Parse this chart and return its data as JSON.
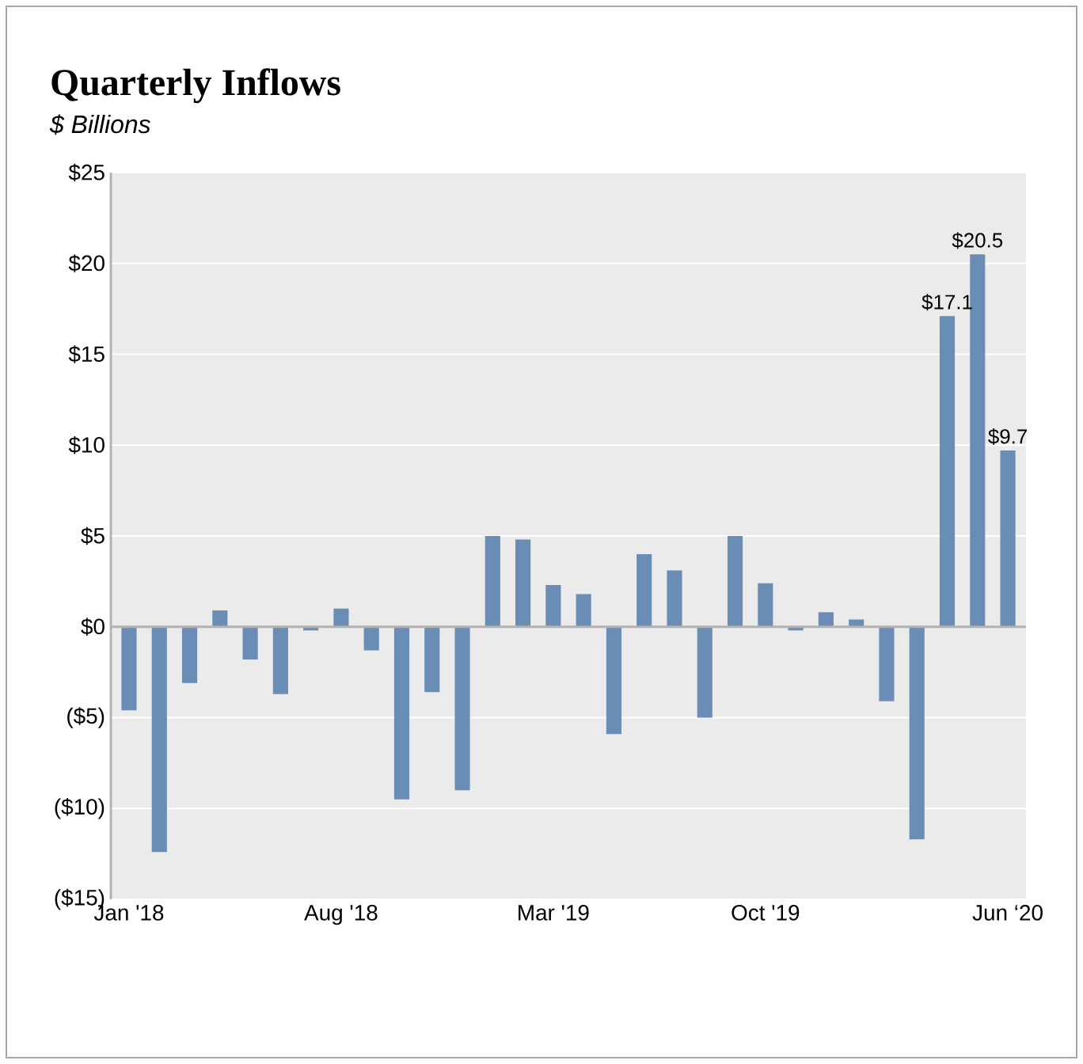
{
  "chart_data": {
    "type": "bar",
    "title": "Quarterly Inflows",
    "subtitle": "$ Billions",
    "categories": [
      "Jan '18",
      null,
      null,
      null,
      null,
      null,
      null,
      "Aug '18",
      null,
      null,
      null,
      null,
      null,
      null,
      "Mar '19",
      null,
      null,
      null,
      null,
      null,
      null,
      "Oct '19",
      null,
      null,
      null,
      null,
      null,
      null,
      null,
      "Jun ‘20"
    ],
    "values": [
      -4.6,
      -12.4,
      -3.1,
      0.9,
      -1.8,
      -3.7,
      -0.2,
      1.0,
      -1.3,
      -9.5,
      -3.6,
      -9.0,
      5.0,
      4.8,
      2.3,
      1.8,
      -5.9,
      4.0,
      3.1,
      -5.0,
      5.0,
      2.4,
      -0.2,
      0.8,
      0.4,
      -4.1,
      -11.7,
      17.1,
      20.5,
      9.7
    ],
    "value_labels": [
      null,
      null,
      null,
      null,
      null,
      null,
      null,
      null,
      null,
      null,
      null,
      null,
      null,
      null,
      null,
      null,
      null,
      null,
      null,
      null,
      null,
      null,
      null,
      null,
      null,
      null,
      null,
      "$17.1",
      "$20.5",
      "$9.7"
    ],
    "color": "#6a8db5",
    "ylim": [
      -15,
      25
    ],
    "yticks": [
      {
        "value": -15,
        "label": "($15)"
      },
      {
        "value": -10,
        "label": "($10)"
      },
      {
        "value": -5,
        "label": "($5)"
      },
      {
        "value": 0,
        "label": "$0"
      },
      {
        "value": 5,
        "label": "$5"
      },
      {
        "value": 10,
        "label": "$10"
      },
      {
        "value": 15,
        "label": "$15"
      },
      {
        "value": 20,
        "label": "$20"
      },
      {
        "value": 25,
        "label": "$25"
      }
    ],
    "grid": "y"
  }
}
